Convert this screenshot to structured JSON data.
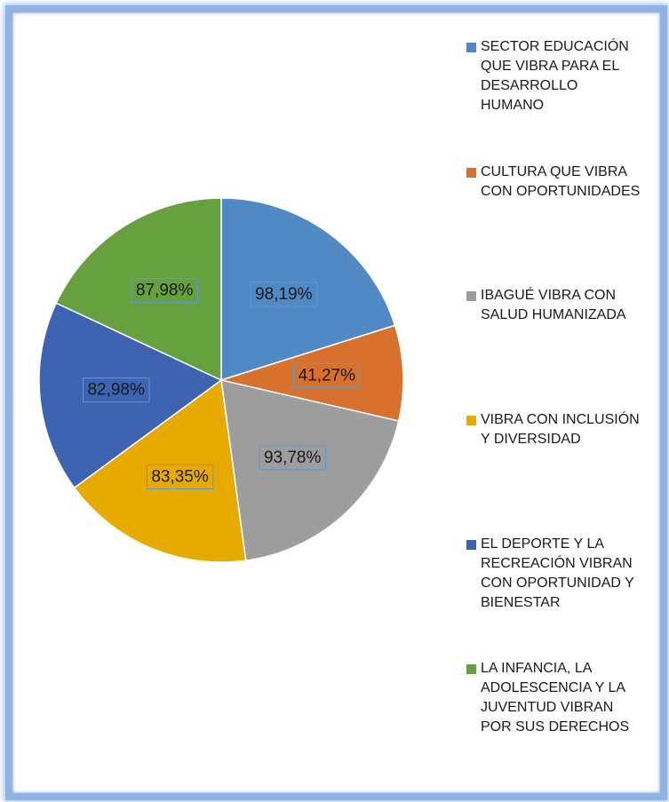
{
  "chart_data": {
    "type": "pie",
    "categories": [
      "SECTOR EDUCACIÓN QUE VIBRA PARA EL DESARROLLO HUMANO",
      "CULTURA QUE VIBRA CON OPORTUNIDADES",
      "IBAGUÉ VIBRA CON SALUD HUMANIZADA",
      "VIBRA CON INCLUSIÓN Y DIVERSIDAD",
      "EL DEPORTE Y LA RECREACIÓN VIBRAN CON OPORTUNIDAD Y BIENESTAR",
      "LA INFANCIA, LA ADOLESCENCIA Y LA JUVENTUD VIBRAN POR SUS DERECHOS"
    ],
    "values": [
      98.19,
      41.27,
      93.78,
      83.35,
      82.98,
      87.98
    ],
    "value_labels": [
      "98,19%",
      "41,27%",
      "93,78%",
      "83,35%",
      "82,98%",
      "87,98%"
    ],
    "colors": [
      "#5189c4",
      "#d8712c",
      "#9d9d9d",
      "#e6aa00",
      "#3d63b1",
      "#67a03f"
    ],
    "legend": "right"
  }
}
